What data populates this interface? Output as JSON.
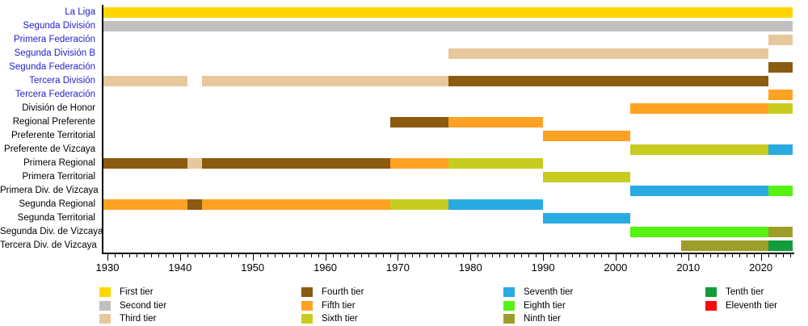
{
  "chart_data": {
    "type": "timeline-bar",
    "description_not_rendered": "",
    "x_axis": {
      "tick_labels": [
        "1930",
        "1940",
        "1950",
        "1960",
        "1970",
        "1980",
        "1990",
        "2000",
        "2010",
        "2020"
      ],
      "minor_tick_interval_years": 1,
      "range": [
        1929,
        2024.4
      ],
      "grid": false
    },
    "tiers": [
      {
        "name": "First tier",
        "color": "#FFD700"
      },
      {
        "name": "Second tier",
        "color": "#C0C0C0"
      },
      {
        "name": "Third tier",
        "color": "#E6C89C"
      },
      {
        "name": "Fourth tier",
        "color": "#8A5B10"
      },
      {
        "name": "Fifth tier",
        "color": "#FFA122"
      },
      {
        "name": "Sixth tier",
        "color": "#C8CC1F"
      },
      {
        "name": "Seventh tier",
        "color": "#29ABE2"
      },
      {
        "name": "Eighth tier",
        "color": "#57F211"
      },
      {
        "name": "Ninth tier",
        "color": "#9C9E2A"
      },
      {
        "name": "Tenth tier",
        "color": "#129D3B"
      },
      {
        "name": "Eleventh tier",
        "color": "#FB0A0A"
      }
    ],
    "rows": [
      {
        "label": "La Liga",
        "is_link": true,
        "segments": [
          {
            "tier": "First tier",
            "start": 1929,
            "end": 2024.4
          }
        ]
      },
      {
        "label": "Segunda División",
        "is_link": true,
        "segments": [
          {
            "tier": "Second tier",
            "start": 1929,
            "end": 2024.4
          }
        ]
      },
      {
        "label": "Primera Federación",
        "is_link": true,
        "segments": [
          {
            "tier": "Third tier",
            "start": 2021,
            "end": 2024.4
          }
        ]
      },
      {
        "label": "Segunda División B",
        "is_link": true,
        "segments": [
          {
            "tier": "Third tier",
            "start": 1977,
            "end": 2021
          }
        ]
      },
      {
        "label": "Segunda Federación",
        "is_link": true,
        "segments": [
          {
            "tier": "Fourth tier",
            "start": 2021,
            "end": 2024.4
          }
        ]
      },
      {
        "label": "Tercera División",
        "is_link": true,
        "segments": [
          {
            "tier": "Third tier",
            "start": 1929,
            "end": 1941
          },
          {
            "tier": "Third tier",
            "start": 1943,
            "end": 1977
          },
          {
            "tier": "Fourth tier",
            "start": 1977,
            "end": 2021
          }
        ]
      },
      {
        "label": "Tercera Federación",
        "is_link": true,
        "segments": [
          {
            "tier": "Fifth tier",
            "start": 2021,
            "end": 2024.4
          }
        ]
      },
      {
        "label": "División de Honor",
        "is_link": false,
        "segments": [
          {
            "tier": "Fifth tier",
            "start": 2002,
            "end": 2021
          },
          {
            "tier": "Sixth tier",
            "start": 2021,
            "end": 2024.4
          }
        ]
      },
      {
        "label": "Regional Preferente",
        "is_link": false,
        "segments": [
          {
            "tier": "Fourth tier",
            "start": 1969,
            "end": 1977
          },
          {
            "tier": "Fifth tier",
            "start": 1977,
            "end": 1990
          }
        ]
      },
      {
        "label": "Preferente Territorial",
        "is_link": false,
        "segments": [
          {
            "tier": "Fifth tier",
            "start": 1990,
            "end": 2002
          }
        ]
      },
      {
        "label": "Preferente de Vizcaya",
        "is_link": false,
        "segments": [
          {
            "tier": "Sixth tier",
            "start": 2002,
            "end": 2021
          },
          {
            "tier": "Seventh tier",
            "start": 2021,
            "end": 2024.4
          }
        ]
      },
      {
        "label": "Primera Regional",
        "is_link": false,
        "segments": [
          {
            "tier": "Fourth tier",
            "start": 1929,
            "end": 1941
          },
          {
            "tier": "Third tier",
            "start": 1941,
            "end": 1943
          },
          {
            "tier": "Fourth tier",
            "start": 1943,
            "end": 1969
          },
          {
            "tier": "Fifth tier",
            "start": 1969,
            "end": 1977
          },
          {
            "tier": "Sixth tier",
            "start": 1977,
            "end": 1990
          }
        ]
      },
      {
        "label": "Primera Territorial",
        "is_link": false,
        "segments": [
          {
            "tier": "Sixth tier",
            "start": 1990,
            "end": 2002
          }
        ]
      },
      {
        "label": "Primera Div. de Vizcaya",
        "is_link": false,
        "segments": [
          {
            "tier": "Seventh tier",
            "start": 2002,
            "end": 2021
          },
          {
            "tier": "Eighth tier",
            "start": 2021,
            "end": 2024.4
          }
        ]
      },
      {
        "label": "Segunda Regional",
        "is_link": false,
        "segments": [
          {
            "tier": "Fifth tier",
            "start": 1929,
            "end": 1941
          },
          {
            "tier": "Fourth tier",
            "start": 1941,
            "end": 1943
          },
          {
            "tier": "Fifth tier",
            "start": 1943,
            "end": 1969
          },
          {
            "tier": "Sixth tier",
            "start": 1969,
            "end": 1977
          },
          {
            "tier": "Seventh tier",
            "start": 1977,
            "end": 1990
          }
        ]
      },
      {
        "label": "Segunda Territorial",
        "is_link": false,
        "segments": [
          {
            "tier": "Seventh tier",
            "start": 1990,
            "end": 2002
          }
        ]
      },
      {
        "label": "Segunda Div. de Vizcaya",
        "is_link": false,
        "segments": [
          {
            "tier": "Eighth tier",
            "start": 2002,
            "end": 2021
          },
          {
            "tier": "Ninth tier",
            "start": 2021,
            "end": 2024.4
          }
        ]
      },
      {
        "label": "Tercera Div. de Vizcaya",
        "is_link": false,
        "segments": [
          {
            "tier": "Ninth tier",
            "start": 2009,
            "end": 2021
          },
          {
            "tier": "Tenth tier",
            "start": 2021,
            "end": 2024.4
          }
        ]
      }
    ],
    "legend": {
      "position": "bottom",
      "columns": [
        [
          "First tier",
          "Second tier",
          "Third tier"
        ],
        [
          "Fourth tier",
          "Fifth tier",
          "Sixth tier"
        ],
        [
          "Seventh tier",
          "Eighth tier",
          "Ninth tier"
        ],
        [
          "Tenth tier",
          "Eleventh tier"
        ]
      ]
    },
    "colors": {
      "link_label": "#2222cc",
      "static_label": "#000000",
      "axis": "#000000"
    }
  }
}
